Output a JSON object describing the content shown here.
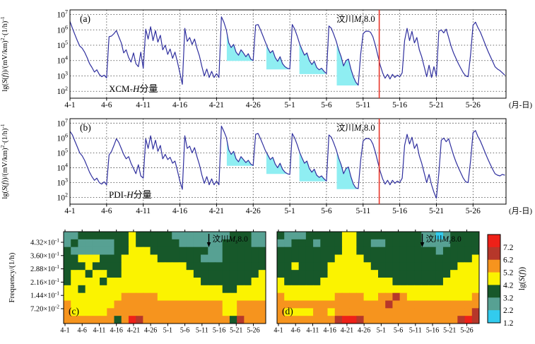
{
  "figure": {
    "background": "#ffffff"
  },
  "palette": {
    "curve": "#2f2f9e",
    "anomaly_fill": "#8feef2",
    "event_line": "#e8352a",
    "grid_line": "#3a3a3a",
    "frame": "#000000",
    "levels": {
      "1": "#32cbee",
      "2": "#57a193",
      "3": "#17582a",
      "4": "#fbf300",
      "5": "#f6941e",
      "6": "#b6372a",
      "7": "#ee2118"
    }
  },
  "time_axis": {
    "tick_labels": [
      "4-1",
      "4-6",
      "4-11",
      "4-16",
      "4-21",
      "4-26",
      "5-1",
      "5-6",
      "5-11",
      "5-16",
      "5-21",
      "5-26"
    ],
    "tick_days": [
      0,
      5,
      10,
      15,
      20,
      25,
      30,
      35,
      40,
      45,
      50,
      55
    ],
    "unit_suffix": "(月-日)"
  },
  "chart_data": [
    {
      "id": "a",
      "type": "line",
      "panel_letter": "(a)",
      "series_label": "XCM-H分量",
      "series_label_parts": [
        {
          "t": "XCM-"
        },
        {
          "t": "H",
          "i": true
        },
        {
          "t": "分量"
        }
      ],
      "ylabel": "lg(S(f))/(mV/km)²·(1/h)⁻¹",
      "ylabel_parts": [
        {
          "t": "lg("
        },
        {
          "t": "S",
          "i": true
        },
        {
          "t": "("
        },
        {
          "t": "f",
          "i": true
        },
        {
          "t": "))/(mV/km)"
        },
        {
          "t": "2",
          "sup": true
        },
        {
          "t": "·(1/h)"
        },
        {
          "t": "-1",
          "sup": true
        }
      ],
      "y_scale": "log10",
      "ylim_lg": [
        1.55,
        7.3
      ],
      "y_tick_exponents": [
        2,
        3,
        4,
        5,
        6,
        7
      ],
      "xlim_days": [
        0,
        59.5
      ],
      "series": {
        "x0_day": 0,
        "dx_day": 0.33333,
        "lg_values": [
          6.55,
          6.1,
          5.7,
          5.3,
          4.95,
          4.8,
          4.55,
          4.2,
          3.8,
          3.55,
          3.25,
          3.4,
          3.1,
          2.95,
          3.05,
          2.87,
          5.55,
          5.6,
          5.75,
          5.95,
          5.55,
          5.15,
          4.5,
          4.7,
          4.2,
          3.9,
          4.5,
          3.8,
          3.6,
          4.55,
          3.5,
          6.05,
          5.4,
          6.2,
          5.3,
          5.95,
          5.2,
          5.65,
          4.7,
          5.0,
          4.4,
          4.75,
          4.15,
          4.55,
          3.9,
          3.2,
          2.45,
          6.1,
          5.25,
          5.5,
          5.05,
          5.4,
          4.8,
          4.3,
          3.6,
          3.0,
          3.45,
          2.9,
          3.3,
          2.9,
          3.15,
          2.9,
          6.85,
          6.5,
          6.0,
          5.15,
          4.85,
          5.05,
          4.55,
          4.35,
          4.7,
          4.5,
          4.25,
          4.45,
          4.1,
          4.0,
          6.3,
          6.35,
          6.0,
          5.6,
          5.2,
          4.8,
          4.5,
          4.65,
          4.2,
          3.95,
          4.25,
          3.8,
          3.6,
          3.5,
          3.45,
          6.35,
          6.05,
          5.6,
          5.1,
          4.7,
          4.35,
          4.5,
          4.0,
          3.75,
          3.95,
          3.55,
          3.4,
          3.5,
          3.3,
          3.15,
          6.25,
          6.1,
          5.7,
          5.25,
          4.7,
          4.25,
          3.65,
          4.0,
          4.1,
          3.45,
          2.95,
          2.6,
          2.4,
          4.4,
          5.75,
          5.9,
          5.92,
          5.85,
          5.55,
          5.0,
          4.35,
          3.7,
          3.2,
          2.85,
          3.1,
          2.8,
          3.1,
          2.9,
          3.05,
          2.95,
          3.2,
          5.3,
          6.1,
          5.3,
          5.9,
          5.15,
          5.5,
          4.7,
          4.25,
          3.6,
          2.95,
          3.7,
          2.9,
          3.6,
          3.0,
          5.9,
          6.0,
          5.8,
          6.05,
          5.5,
          4.95,
          4.5,
          4.15,
          3.8,
          3.5,
          3.2,
          3.0,
          2.95,
          4.4,
          6.3,
          6.5,
          6.15,
          5.85,
          5.45,
          5.05,
          4.65,
          4.3,
          3.95,
          3.6,
          3.45,
          3.35,
          3.2,
          3.05
        ]
      },
      "anomalies": [
        {
          "start_day": 21.4,
          "end_day": 25.0,
          "base_lg": 3.98
        },
        {
          "start_day": 26.8,
          "end_day": 29.8,
          "base_lg": 3.42
        },
        {
          "start_day": 31.3,
          "end_day": 34.8,
          "base_lg": 3.12
        },
        {
          "start_day": 36.4,
          "end_day": 39.35,
          "base_lg": 2.38
        }
      ],
      "event": {
        "label": "汶川Ms8.0",
        "label_parts": [
          {
            "t": "汶川"
          },
          {
            "t": "M",
            "i": true
          },
          {
            "t": "s",
            "i": true,
            "sub": true
          },
          {
            "t": "8.0"
          }
        ],
        "day": 42.2
      }
    },
    {
      "id": "b",
      "type": "line",
      "panel_letter": "(b)",
      "series_label": "PDI-H分量",
      "series_label_parts": [
        {
          "t": "PDI-"
        },
        {
          "t": "H",
          "i": true
        },
        {
          "t": "分量"
        }
      ],
      "ylabel": "lg(S(f))/(mV/km)²·(1/h)⁻¹",
      "ylabel_parts": [
        {
          "t": "lg("
        },
        {
          "t": "S",
          "i": true
        },
        {
          "t": "("
        },
        {
          "t": "f",
          "i": true
        },
        {
          "t": "))/(mV/km)"
        },
        {
          "t": "2",
          "sup": true
        },
        {
          "t": "·(1/h)"
        },
        {
          "t": "-1",
          "sup": true
        }
      ],
      "y_scale": "log10",
      "ylim_lg": [
        1.55,
        7.3
      ],
      "y_tick_exponents": [
        2,
        3,
        4,
        5,
        6,
        7
      ],
      "xlim_days": [
        0,
        59.5
      ],
      "series": {
        "x0_day": 0,
        "dx_day": 0.33333,
        "lg_values": [
          6.45,
          6.2,
          5.8,
          5.4,
          5.0,
          4.8,
          4.5,
          4.1,
          3.7,
          3.4,
          3.15,
          3.3,
          3.0,
          2.9,
          3.05,
          2.85,
          4.85,
          5.1,
          5.5,
          5.95,
          5.7,
          5.3,
          4.9,
          4.6,
          4.75,
          4.3,
          3.95,
          3.6,
          4.2,
          3.45,
          3.3,
          5.95,
          5.3,
          6.15,
          5.25,
          5.85,
          5.1,
          5.5,
          4.6,
          4.9,
          4.55,
          4.7,
          4.3,
          4.45,
          3.8,
          3.1,
          2.55,
          6.15,
          5.3,
          5.45,
          5.0,
          5.35,
          4.75,
          4.2,
          3.5,
          2.95,
          3.4,
          2.85,
          3.25,
          2.85,
          3.1,
          2.85,
          6.8,
          6.45,
          6.05,
          5.2,
          4.9,
          5.1,
          4.6,
          4.4,
          4.75,
          4.55,
          4.35,
          4.5,
          4.25,
          4.15,
          6.25,
          6.3,
          5.95,
          5.55,
          5.15,
          4.85,
          4.55,
          4.7,
          4.25,
          4.0,
          4.3,
          3.9,
          3.7,
          3.6,
          3.55,
          6.3,
          6.0,
          5.55,
          5.05,
          4.65,
          4.3,
          4.45,
          3.95,
          3.7,
          3.9,
          3.5,
          3.35,
          3.45,
          3.25,
          3.1,
          6.2,
          6.05,
          5.65,
          5.2,
          4.65,
          4.2,
          3.6,
          3.95,
          4.05,
          3.4,
          2.9,
          2.65,
          2.6,
          4.5,
          5.8,
          5.95,
          5.97,
          5.9,
          5.6,
          5.05,
          4.4,
          3.75,
          3.25,
          2.9,
          3.15,
          2.85,
          3.15,
          2.95,
          3.1,
          3.0,
          3.3,
          5.5,
          6.25,
          5.6,
          6.05,
          5.3,
          5.6,
          4.8,
          4.3,
          3.65,
          3.0,
          3.55,
          2.85,
          2.35,
          1.95,
          3.6,
          5.85,
          6.0,
          5.75,
          5.95,
          5.4,
          4.85,
          4.4,
          4.0,
          3.65,
          3.3,
          3.05,
          3.0,
          4.5,
          6.35,
          6.5,
          6.1,
          5.8,
          5.4,
          5.0,
          4.6,
          4.25,
          3.9,
          3.6,
          3.5,
          3.45,
          3.55,
          3.5
        ]
      },
      "anomalies": [
        {
          "start_day": 21.4,
          "end_day": 25.0,
          "base_lg": 4.13
        },
        {
          "start_day": 26.8,
          "end_day": 29.8,
          "base_lg": 3.58
        },
        {
          "start_day": 31.3,
          "end_day": 34.8,
          "base_lg": 3.08
        },
        {
          "start_day": 36.4,
          "end_day": 39.3,
          "base_lg": 2.56
        }
      ],
      "event": {
        "label": "汶川Ms8.0",
        "label_parts": [
          {
            "t": "汶川"
          },
          {
            "t": "M",
            "i": true
          },
          {
            "t": "s",
            "i": true,
            "sub": true
          },
          {
            "t": "8.0"
          }
        ],
        "day": 42.2
      }
    },
    {
      "id": "c",
      "type": "heatmap",
      "panel_letter": "(c)",
      "ylabel": "Frequency/(1/h)",
      "y_ticks": [
        {
          "mantissa": "4.32",
          "exp": "-1"
        },
        {
          "mantissa": "3.60",
          "exp": "-1"
        },
        {
          "mantissa": "2.88",
          "exp": "-1"
        },
        {
          "mantissa": "2.16",
          "exp": "-1"
        },
        {
          "mantissa": "1.44",
          "exp": "-1"
        },
        {
          "mantissa": "7.20",
          "exp": "-2"
        }
      ],
      "grid": {
        "cols": 28,
        "rows": 12,
        "col_span_days": 2,
        "levels_rows": [
          "2233333334333332222222233322",
          "2322222334333333222222333322",
          "3222222334443333333322333333",
          "3344433344444333333222333333",
          "3334333344444444433333333333",
          "3443443344444444443333333334",
          "3444434444444444444333333344",
          "4434444444444444444444334444",
          "4444444455555444444444444444",
          "5444444555555555555555445555",
          "5444445555555555555555445555",
          "5555555357655555555555536555"
        ]
      },
      "event": {
        "label": "汶川Ms8.0",
        "label_parts": [
          {
            "t": "汶川"
          },
          {
            "t": "M",
            "i": true
          },
          {
            "t": "s",
            "i": true,
            "sub": true
          },
          {
            "t": "8.0"
          }
        ],
        "day": 42
      }
    },
    {
      "id": "d",
      "type": "heatmap",
      "panel_letter": "(d)",
      "grid": {
        "cols": 28,
        "rows": 12,
        "col_span_days": 2,
        "levels_rows": [
          "3222333334433333333322123333",
          "2233323334433223333322223333",
          "3333333334433333333333233333",
          "3333333344443333333333333334",
          "3343333444444333333333333444",
          "3333333444444433333333334444",
          "4333334444444444333333344444",
          "4444444444444444444444444444",
          "5444444455554455654444444445",
          "5555555555555556555555555555",
          "5444455455555555555555555556",
          "5555555567765555555555555676"
        ]
      },
      "event": {
        "label": "汶川Ms8.0",
        "label_parts": [
          {
            "t": "汶川"
          },
          {
            "t": "M",
            "i": true
          },
          {
            "t": "s",
            "i": true,
            "sub": true
          },
          {
            "t": "8.0"
          }
        ],
        "day": 42
      }
    },
    {
      "id": "colorbar",
      "type": "colorbar",
      "label": "lg(S(f))",
      "label_parts": [
        {
          "t": "lg("
        },
        {
          "t": "S",
          "i": true
        },
        {
          "t": "("
        },
        {
          "t": "f",
          "i": true
        },
        {
          "t": "))"
        }
      ],
      "tick_labels": [
        "7.2",
        "6.2",
        "5.2",
        "4.2",
        "3.2",
        "2.2",
        "1.2"
      ],
      "segment_colors_top_to_bottom": [
        "#ee2118",
        "#b6372a",
        "#f6941e",
        "#fbf300",
        "#17582a",
        "#57a193",
        "#32cbee"
      ]
    }
  ]
}
